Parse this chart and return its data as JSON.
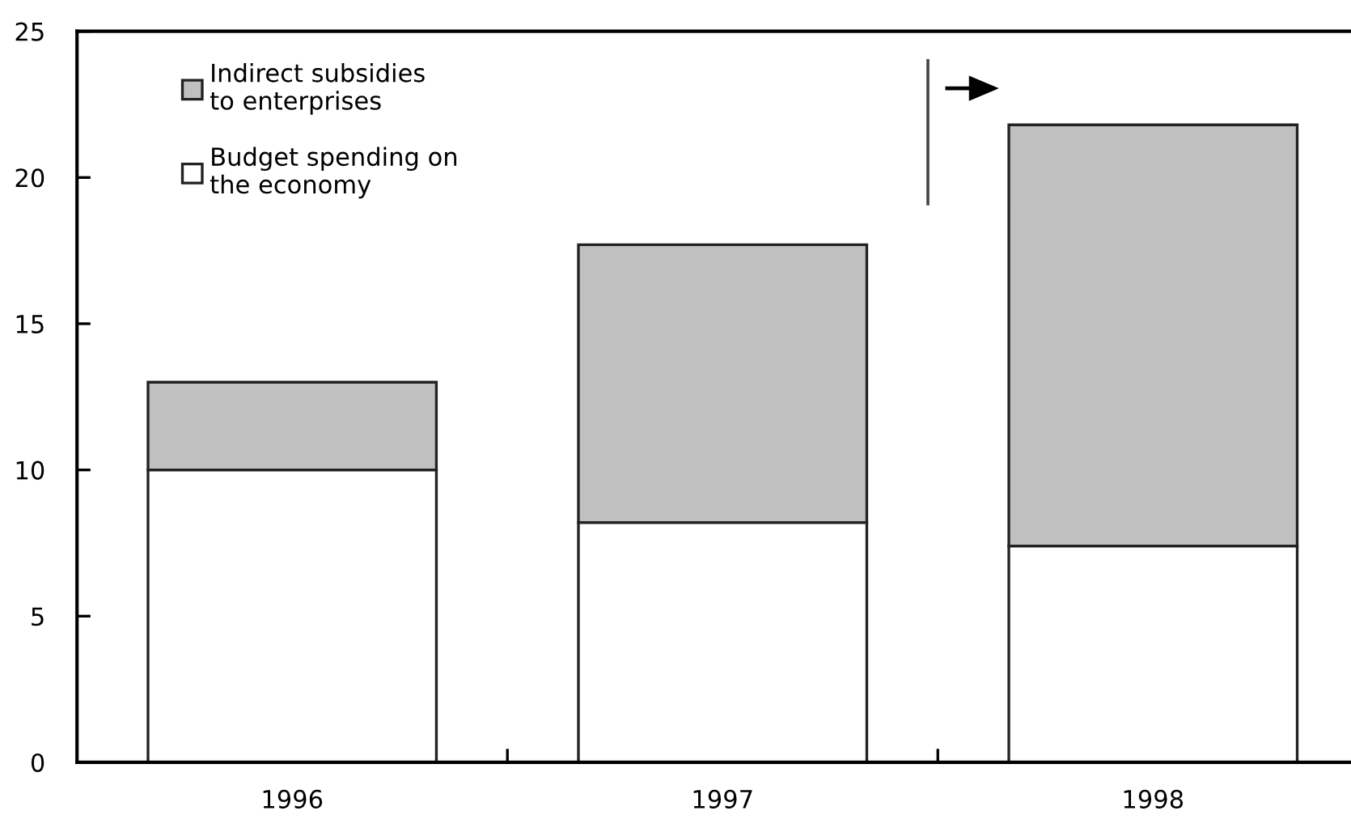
{
  "chart_data": {
    "type": "bar",
    "stacked": true,
    "categories": [
      "1996",
      "1997",
      "1998"
    ],
    "series": [
      {
        "name": "Budget spending on\nthe economy",
        "color": "#ffffff",
        "values": [
          10.0,
          8.2,
          7.4
        ]
      },
      {
        "name": "Indirect subsidies\nto enterprises",
        "color": "#c0c0c0",
        "values": [
          3.0,
          9.5,
          14.4
        ]
      }
    ],
    "ylim": [
      0,
      25
    ],
    "yticks": [
      0,
      5,
      10,
      15,
      20,
      25
    ],
    "grid": false,
    "legend": "top left"
  }
}
